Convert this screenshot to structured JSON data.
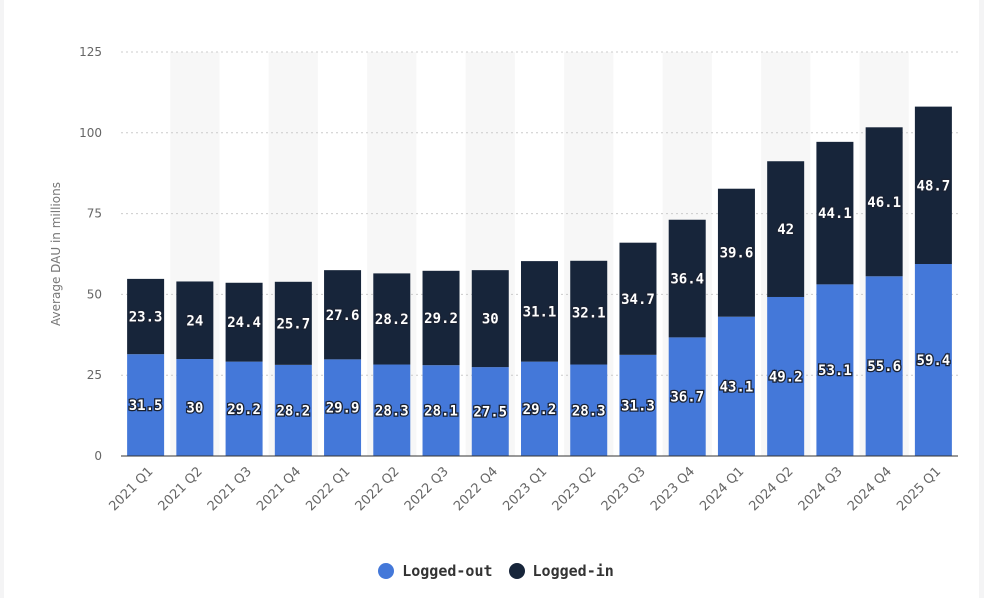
{
  "chart_data": {
    "type": "bar",
    "stacked": true,
    "categories": [
      "2021 Q1",
      "2021 Q2",
      "2021 Q3",
      "2021 Q4",
      "2022 Q1",
      "2022 Q2",
      "2022 Q3",
      "2022 Q4",
      "2023 Q1",
      "2023 Q2",
      "2023 Q3",
      "2023 Q4",
      "2024 Q1",
      "2024 Q2",
      "2024 Q3",
      "2024 Q4",
      "2025 Q1"
    ],
    "series": [
      {
        "name": "Logged-out",
        "color": "#4478d9",
        "values": [
          31.5,
          30,
          29.2,
          28.2,
          29.9,
          28.3,
          28.1,
          27.5,
          29.2,
          28.3,
          31.3,
          36.7,
          43.1,
          49.2,
          53.1,
          55.6,
          59.4
        ]
      },
      {
        "name": "Logged-in",
        "color": "#17253a",
        "values": [
          23.3,
          24,
          24.4,
          25.7,
          27.6,
          28.2,
          29.2,
          30,
          31.1,
          32.1,
          34.7,
          36.4,
          39.6,
          42,
          44.1,
          46.1,
          48.7
        ]
      }
    ],
    "xlabel": "",
    "ylabel": "Average DAU in millions",
    "ylim": [
      0,
      125
    ],
    "yticks": [
      "0",
      "25",
      "50",
      "75",
      "100",
      "125"
    ],
    "grid": true,
    "legend_position": "bottom"
  }
}
